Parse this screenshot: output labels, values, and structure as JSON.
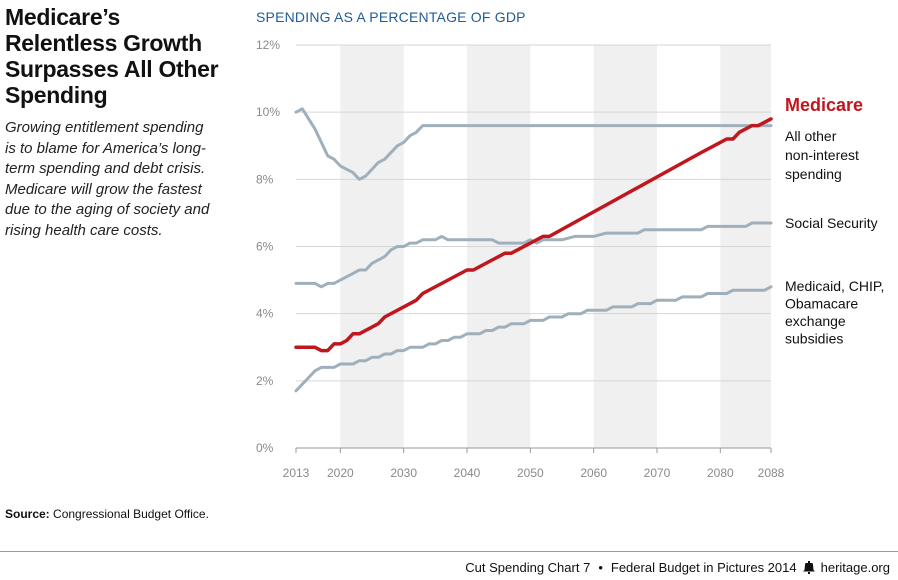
{
  "headline": [
    "Medicare’s",
    "Relentless Growth",
    "Surpasses All Other",
    "Spending"
  ],
  "dek": "Growing entitlement spending is to blame for America’s long-term spending and debt crisis. Medicare will grow the fastest due to the aging of society and rising health care costs.",
  "source": {
    "label": "Source:",
    "text": "Congressional Budget Office."
  },
  "footer": {
    "left": "Cut Spending Chart 7",
    "separator": "•",
    "middle": "Federal Budget in Pictures 2014",
    "right": "heritage.org",
    "icon": "liberty-bell-icon"
  },
  "chart_data": {
    "type": "line",
    "title": "SPENDING AS A PERCENTAGE OF GDP",
    "xlabel": "",
    "ylabel": "",
    "xlim": [
      2013,
      2088
    ],
    "ylim": [
      0,
      12
    ],
    "x_ticks": [
      2013,
      2020,
      2030,
      2040,
      2050,
      2060,
      2070,
      2080,
      2088
    ],
    "y_ticks": [
      0,
      2,
      4,
      6,
      8,
      10,
      12
    ],
    "y_tick_suffix": "%",
    "grid": "horizontal",
    "shaded_bands": [
      [
        2020,
        2030
      ],
      [
        2040,
        2050
      ],
      [
        2060,
        2070
      ],
      [
        2080,
        2088
      ]
    ],
    "colors": {
      "medicare": "#c0161e",
      "other": "#9fb0bc",
      "band": "#f0f0f0",
      "grid": "#d6d6d6"
    },
    "series": [
      {
        "name": "Medicare",
        "label_lines": [
          "Medicare"
        ],
        "color": "#c0161e",
        "emphasis": true,
        "points": [
          [
            2013,
            3.0
          ],
          [
            2016,
            3.0
          ],
          [
            2017,
            2.9
          ],
          [
            2018,
            2.9
          ],
          [
            2019,
            3.1
          ],
          [
            2020,
            3.1
          ],
          [
            2021,
            3.2
          ],
          [
            2022,
            3.4
          ],
          [
            2023,
            3.4
          ],
          [
            2025,
            3.6
          ],
          [
            2026,
            3.7
          ],
          [
            2027,
            3.9
          ],
          [
            2030,
            4.2
          ],
          [
            2032,
            4.4
          ],
          [
            2033,
            4.6
          ],
          [
            2040,
            5.3
          ],
          [
            2041,
            5.3
          ],
          [
            2046,
            5.8
          ],
          [
            2047,
            5.8
          ],
          [
            2052,
            6.3
          ],
          [
            2053,
            6.3
          ],
          [
            2077,
            8.8
          ],
          [
            2080,
            9.1
          ],
          [
            2081,
            9.2
          ],
          [
            2082,
            9.2
          ],
          [
            2083,
            9.4
          ],
          [
            2085,
            9.6
          ],
          [
            2086,
            9.6
          ],
          [
            2088,
            9.8
          ]
        ]
      },
      {
        "name": "All other non-interest spending",
        "label_lines": [
          "All other",
          "non-interest",
          "spending"
        ],
        "color": "#9fb0bc",
        "points": [
          [
            2013,
            10.0
          ],
          [
            2014,
            10.1
          ],
          [
            2016,
            9.5
          ],
          [
            2018,
            8.7
          ],
          [
            2019,
            8.6
          ],
          [
            2020,
            8.4
          ],
          [
            2022,
            8.2
          ],
          [
            2023,
            8.0
          ],
          [
            2024,
            8.1
          ],
          [
            2026,
            8.5
          ],
          [
            2027,
            8.6
          ],
          [
            2029,
            9.0
          ],
          [
            2030,
            9.1
          ],
          [
            2031,
            9.3
          ],
          [
            2032,
            9.4
          ],
          [
            2033,
            9.6
          ],
          [
            2088,
            9.6
          ]
        ]
      },
      {
        "name": "Social Security",
        "label_lines": [
          "Social Security"
        ],
        "color": "#9fb0bc",
        "points": [
          [
            2013,
            4.9
          ],
          [
            2016,
            4.9
          ],
          [
            2017,
            4.8
          ],
          [
            2018,
            4.9
          ],
          [
            2019,
            4.9
          ],
          [
            2020,
            5.0
          ],
          [
            2022,
            5.2
          ],
          [
            2023,
            5.3
          ],
          [
            2024,
            5.3
          ],
          [
            2025,
            5.5
          ],
          [
            2027,
            5.7
          ],
          [
            2028,
            5.9
          ],
          [
            2029,
            6.0
          ],
          [
            2030,
            6.0
          ],
          [
            2031,
            6.1
          ],
          [
            2032,
            6.1
          ],
          [
            2033,
            6.2
          ],
          [
            2035,
            6.2
          ],
          [
            2036,
            6.3
          ],
          [
            2037,
            6.2
          ],
          [
            2044,
            6.2
          ],
          [
            2045,
            6.1
          ],
          [
            2049,
            6.1
          ],
          [
            2050,
            6.2
          ],
          [
            2051,
            6.1
          ],
          [
            2052,
            6.2
          ],
          [
            2055,
            6.2
          ],
          [
            2057,
            6.3
          ],
          [
            2060,
            6.3
          ],
          [
            2062,
            6.4
          ],
          [
            2067,
            6.4
          ],
          [
            2068,
            6.5
          ],
          [
            2077,
            6.5
          ],
          [
            2078,
            6.6
          ],
          [
            2084,
            6.6
          ],
          [
            2085,
            6.7
          ],
          [
            2088,
            6.7
          ]
        ]
      },
      {
        "name": "Medicaid, CHIP, Obamacare exchange subsidies",
        "label_lines": [
          "Medicaid, CHIP,",
          "Obamacare",
          "exchange",
          "subsidies"
        ],
        "color": "#9fb0bc",
        "points": [
          [
            2013,
            1.7
          ],
          [
            2014,
            1.9
          ],
          [
            2015,
            2.1
          ],
          [
            2016,
            2.3
          ],
          [
            2017,
            2.4
          ],
          [
            2019,
            2.4
          ],
          [
            2020,
            2.5
          ],
          [
            2022,
            2.5
          ],
          [
            2023,
            2.6
          ],
          [
            2024,
            2.6
          ],
          [
            2025,
            2.7
          ],
          [
            2026,
            2.7
          ],
          [
            2027,
            2.8
          ],
          [
            2028,
            2.8
          ],
          [
            2029,
            2.9
          ],
          [
            2030,
            2.9
          ],
          [
            2031,
            3.0
          ],
          [
            2033,
            3.0
          ],
          [
            2034,
            3.1
          ],
          [
            2035,
            3.1
          ],
          [
            2036,
            3.2
          ],
          [
            2037,
            3.2
          ],
          [
            2038,
            3.3
          ],
          [
            2039,
            3.3
          ],
          [
            2040,
            3.4
          ],
          [
            2042,
            3.4
          ],
          [
            2043,
            3.5
          ],
          [
            2044,
            3.5
          ],
          [
            2045,
            3.6
          ],
          [
            2046,
            3.6
          ],
          [
            2047,
            3.7
          ],
          [
            2049,
            3.7
          ],
          [
            2050,
            3.8
          ],
          [
            2052,
            3.8
          ],
          [
            2053,
            3.9
          ],
          [
            2055,
            3.9
          ],
          [
            2056,
            4.0
          ],
          [
            2058,
            4.0
          ],
          [
            2059,
            4.1
          ],
          [
            2062,
            4.1
          ],
          [
            2063,
            4.2
          ],
          [
            2066,
            4.2
          ],
          [
            2067,
            4.3
          ],
          [
            2069,
            4.3
          ],
          [
            2070,
            4.4
          ],
          [
            2073,
            4.4
          ],
          [
            2074,
            4.5
          ],
          [
            2077,
            4.5
          ],
          [
            2078,
            4.6
          ],
          [
            2081,
            4.6
          ],
          [
            2082,
            4.7
          ],
          [
            2087,
            4.7
          ],
          [
            2088,
            4.8
          ]
        ]
      }
    ]
  }
}
